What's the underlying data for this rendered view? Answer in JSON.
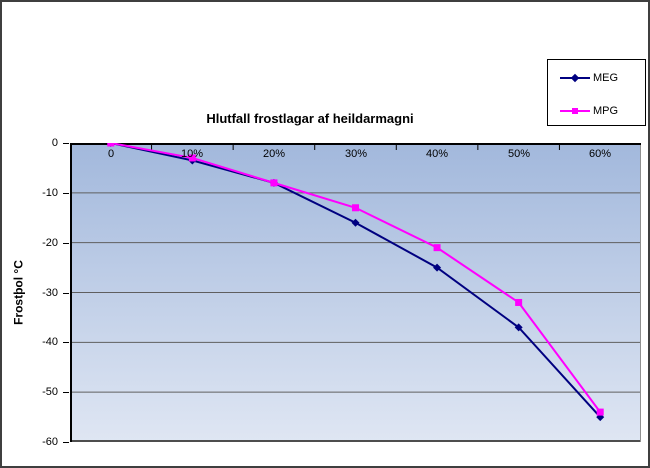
{
  "chart_data": {
    "type": "line",
    "title": "Hlutfall frostlagar af heildarmagni",
    "xlabel": "",
    "ylabel": "Frostþol °C",
    "categories": [
      "0",
      "10%",
      "20%",
      "30%",
      "40%",
      "50%",
      "60%"
    ],
    "series": [
      {
        "name": "MEG",
        "color": "#000080",
        "marker": "diamond",
        "values": [
          0,
          -3.5,
          -8,
          -16,
          -25,
          -37,
          -55
        ]
      },
      {
        "name": "MPG",
        "color": "#ff00ff",
        "marker": "square",
        "values": [
          0,
          -3,
          -8,
          -13,
          -21,
          -32,
          -54
        ]
      }
    ],
    "y_ticks": [
      0,
      -10,
      -20,
      -30,
      -40,
      -50,
      -60
    ],
    "ylim": [
      0,
      -60
    ],
    "grid": true,
    "legend_position": "top-right",
    "colors": {
      "gridline": "#5f5f5f",
      "axis_line": "#000000",
      "plot_border_right": "#909090",
      "plot_border_bottom": "#4d4d4d",
      "plot_gradient_top": "#a2b8dc",
      "plot_gradient_bottom": "#dfe6f3",
      "chart_background": "#ffffff"
    }
  }
}
